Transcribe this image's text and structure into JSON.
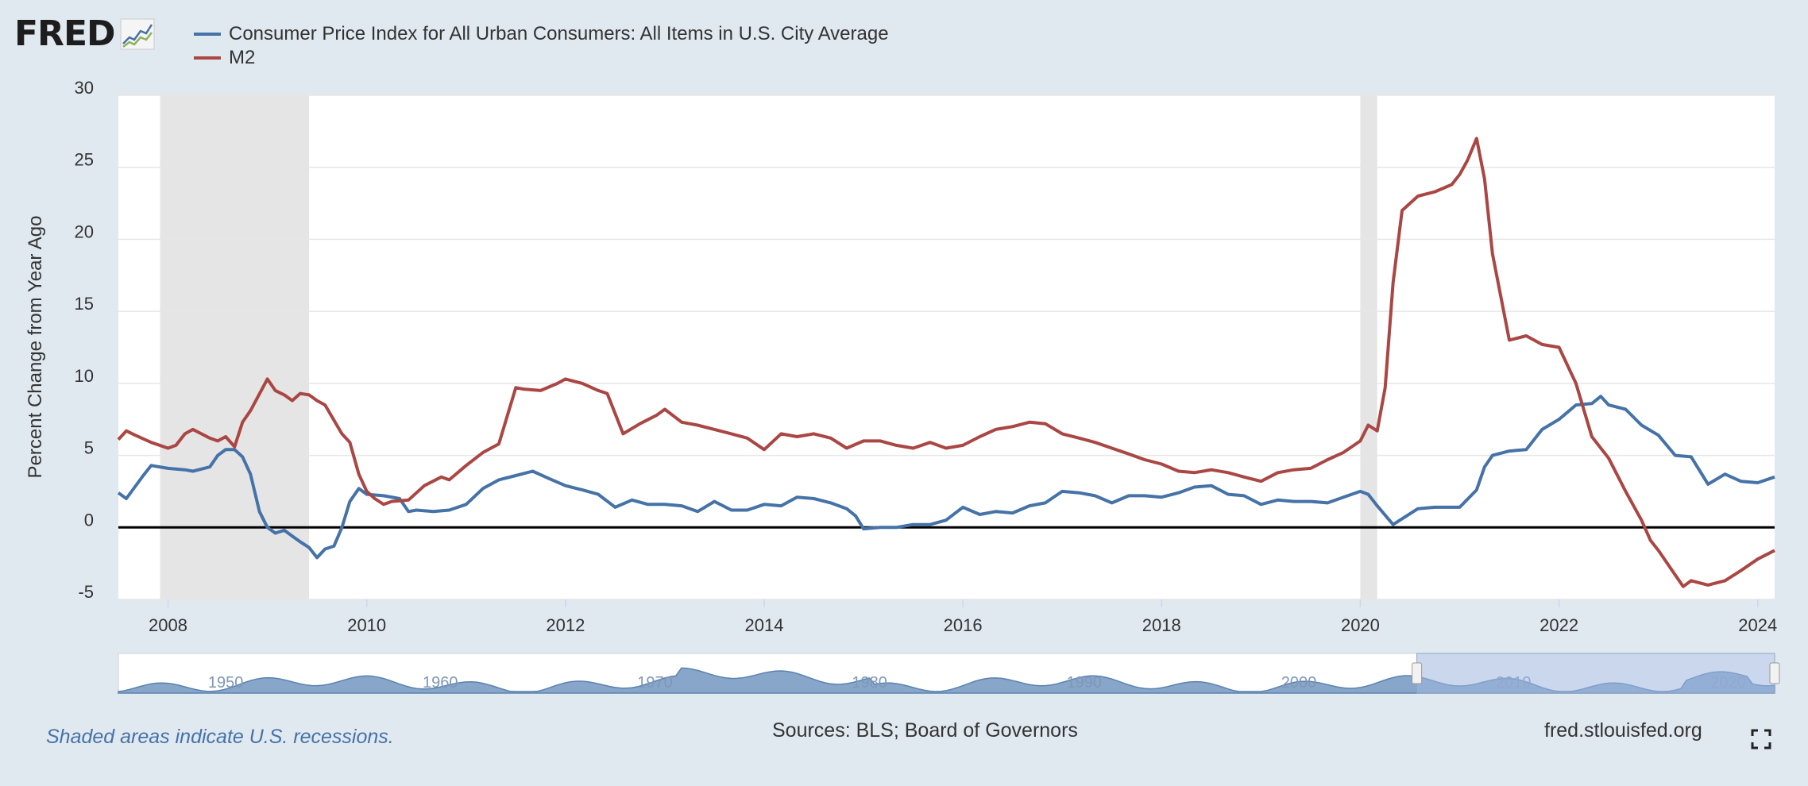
{
  "header": {
    "logo_text": "FRED",
    "logo_icon": "chart-line-icon"
  },
  "legend": {
    "items": [
      {
        "label": "Consumer Price Index for All Urban Consumers: All Items in U.S. City Average",
        "color": "#4572a7"
      },
      {
        "label": "M2",
        "color": "#aa4643"
      }
    ]
  },
  "footer": {
    "recession_note": "Shaded areas indicate U.S. recessions.",
    "sources": "Sources: BLS; Board of Governors",
    "site": "fred.stlouisfed.org",
    "fullscreen_icon": "fullscreen-icon"
  },
  "navigator": {
    "labels": [
      "1950",
      "1960",
      "1970",
      "1980",
      "1990",
      "2000",
      "2010",
      "2020"
    ],
    "selection_start": 2007.5,
    "selection_end": 2024.17
  },
  "chart_data": {
    "type": "line",
    "title": "",
    "xlabel": "",
    "ylabel": "Percent Change from Year Ago",
    "xlim": [
      2007.5,
      2024.17
    ],
    "ylim": [
      -5,
      30
    ],
    "yticks": [
      -5,
      0,
      5,
      10,
      15,
      20,
      25,
      30
    ],
    "xticks": [
      2008,
      2010,
      2012,
      2014,
      2016,
      2018,
      2020,
      2022,
      2024
    ],
    "grid": true,
    "legend_position": "top-left",
    "zero_line": true,
    "recessions": [
      [
        2007.92,
        2009.42
      ],
      [
        2020.0,
        2020.17
      ]
    ],
    "series": [
      {
        "name": "Consumer Price Index for All Urban Consumers: All Items in U.S. City Average",
        "color": "#4572a7",
        "x": [
          2007.5,
          2007.58,
          2007.75,
          2007.83,
          2008.0,
          2008.17,
          2008.25,
          2008.42,
          2008.5,
          2008.58,
          2008.67,
          2008.75,
          2008.83,
          2008.92,
          2009.0,
          2009.08,
          2009.17,
          2009.25,
          2009.33,
          2009.42,
          2009.5,
          2009.58,
          2009.67,
          2009.75,
          2009.83,
          2009.92,
          2010.0,
          2010.17,
          2010.33,
          2010.42,
          2010.5,
          2010.67,
          2010.83,
          2011.0,
          2011.17,
          2011.33,
          2011.5,
          2011.67,
          2011.83,
          2012.0,
          2012.17,
          2012.33,
          2012.5,
          2012.67,
          2012.83,
          2013.0,
          2013.17,
          2013.33,
          2013.5,
          2013.67,
          2013.83,
          2014.0,
          2014.17,
          2014.33,
          2014.5,
          2014.67,
          2014.83,
          2014.92,
          2015.0,
          2015.17,
          2015.33,
          2015.5,
          2015.67,
          2015.83,
          2016.0,
          2016.17,
          2016.33,
          2016.5,
          2016.67,
          2016.83,
          2017.0,
          2017.17,
          2017.33,
          2017.5,
          2017.67,
          2017.83,
          2018.0,
          2018.17,
          2018.33,
          2018.5,
          2018.67,
          2018.83,
          2019.0,
          2019.17,
          2019.33,
          2019.5,
          2019.67,
          2019.83,
          2020.0,
          2020.08,
          2020.17,
          2020.33,
          2020.42,
          2020.58,
          2020.75,
          2020.92,
          2021.0,
          2021.17,
          2021.25,
          2021.33,
          2021.5,
          2021.67,
          2021.83,
          2022.0,
          2022.17,
          2022.33,
          2022.42,
          2022.5,
          2022.67,
          2022.83,
          2023.0,
          2023.17,
          2023.33,
          2023.5,
          2023.67,
          2023.83,
          2024.0,
          2024.17
        ],
        "y": [
          2.4,
          2.0,
          3.6,
          4.3,
          4.1,
          4.0,
          3.9,
          4.2,
          5.0,
          5.4,
          5.4,
          4.9,
          3.7,
          1.1,
          0.0,
          -0.4,
          -0.2,
          -0.6,
          -1.0,
          -1.4,
          -2.1,
          -1.5,
          -1.3,
          0.0,
          1.8,
          2.7,
          2.3,
          2.2,
          2.0,
          1.1,
          1.2,
          1.1,
          1.2,
          1.6,
          2.7,
          3.3,
          3.6,
          3.9,
          3.4,
          2.9,
          2.6,
          2.3,
          1.4,
          1.9,
          1.6,
          1.6,
          1.5,
          1.1,
          1.8,
          1.2,
          1.2,
          1.6,
          1.5,
          2.1,
          2.0,
          1.7,
          1.3,
          0.8,
          -0.1,
          0.0,
          0.0,
          0.2,
          0.2,
          0.5,
          1.4,
          0.9,
          1.1,
          1.0,
          1.5,
          1.7,
          2.5,
          2.4,
          2.2,
          1.7,
          2.2,
          2.2,
          2.1,
          2.4,
          2.8,
          2.9,
          2.3,
          2.2,
          1.6,
          1.9,
          1.8,
          1.8,
          1.7,
          2.1,
          2.5,
          2.3,
          1.5,
          0.2,
          0.6,
          1.3,
          1.4,
          1.4,
          1.4,
          2.6,
          4.2,
          5.0,
          5.3,
          5.4,
          6.8,
          7.5,
          8.5,
          8.6,
          9.1,
          8.5,
          8.2,
          7.1,
          6.4,
          5.0,
          4.9,
          3.0,
          3.7,
          3.2,
          3.1,
          3.5
        ]
      },
      {
        "name": "M2",
        "color": "#aa4643",
        "x": [
          2007.5,
          2007.58,
          2007.67,
          2007.83,
          2008.0,
          2008.08,
          2008.17,
          2008.25,
          2008.42,
          2008.5,
          2008.58,
          2008.67,
          2008.75,
          2008.83,
          2009.0,
          2009.08,
          2009.17,
          2009.25,
          2009.33,
          2009.42,
          2009.5,
          2009.58,
          2009.75,
          2009.83,
          2009.92,
          2010.0,
          2010.08,
          2010.17,
          2010.25,
          2010.42,
          2010.58,
          2010.75,
          2010.83,
          2011.0,
          2011.17,
          2011.33,
          2011.5,
          2011.58,
          2011.75,
          2011.92,
          2012.0,
          2012.17,
          2012.33,
          2012.42,
          2012.58,
          2012.75,
          2012.92,
          2013.0,
          2013.17,
          2013.33,
          2013.5,
          2013.67,
          2013.83,
          2014.0,
          2014.17,
          2014.33,
          2014.5,
          2014.67,
          2014.83,
          2015.0,
          2015.17,
          2015.33,
          2015.5,
          2015.67,
          2015.83,
          2016.0,
          2016.17,
          2016.33,
          2016.5,
          2016.67,
          2016.83,
          2017.0,
          2017.17,
          2017.33,
          2017.5,
          2017.67,
          2017.83,
          2018.0,
          2018.17,
          2018.33,
          2018.5,
          2018.67,
          2018.83,
          2019.0,
          2019.17,
          2019.33,
          2019.5,
          2019.67,
          2019.83,
          2020.0,
          2020.08,
          2020.17,
          2020.25,
          2020.33,
          2020.42,
          2020.58,
          2020.75,
          2020.92,
          2021.0,
          2021.08,
          2021.17,
          2021.25,
          2021.33,
          2021.5,
          2021.67,
          2021.83,
          2022.0,
          2022.17,
          2022.33,
          2022.5,
          2022.67,
          2022.83,
          2022.92,
          2023.0,
          2023.17,
          2023.25,
          2023.33,
          2023.5,
          2023.67,
          2023.83,
          2024.0,
          2024.17
        ],
        "y": [
          6.1,
          6.7,
          6.4,
          5.9,
          5.5,
          5.7,
          6.5,
          6.8,
          6.2,
          6.0,
          6.3,
          5.6,
          7.3,
          8.1,
          10.3,
          9.5,
          9.2,
          8.8,
          9.3,
          9.2,
          8.8,
          8.5,
          6.5,
          5.9,
          3.7,
          2.5,
          2.0,
          1.6,
          1.8,
          1.9,
          2.9,
          3.5,
          3.3,
          4.3,
          5.2,
          5.8,
          9.7,
          9.6,
          9.5,
          10.0,
          10.3,
          10.0,
          9.5,
          9.3,
          6.5,
          7.2,
          7.8,
          8.2,
          7.3,
          7.1,
          6.8,
          6.5,
          6.2,
          5.4,
          6.5,
          6.3,
          6.5,
          6.2,
          5.5,
          6.0,
          6.0,
          5.7,
          5.5,
          5.9,
          5.5,
          5.7,
          6.3,
          6.8,
          7.0,
          7.3,
          7.2,
          6.5,
          6.2,
          5.9,
          5.5,
          5.1,
          4.7,
          4.4,
          3.9,
          3.8,
          4.0,
          3.8,
          3.5,
          3.2,
          3.8,
          4.0,
          4.1,
          4.7,
          5.2,
          6.0,
          7.1,
          6.7,
          9.7,
          17.0,
          22.0,
          23.0,
          23.3,
          23.8,
          24.5,
          25.5,
          27.0,
          24.2,
          19.0,
          13.0,
          13.3,
          12.7,
          12.5,
          10.0,
          6.3,
          4.8,
          2.5,
          0.5,
          -0.9,
          -1.6,
          -3.3,
          -4.1,
          -3.7,
          -4.0,
          -3.7,
          -3.0,
          -2.2,
          -1.6
        ]
      }
    ]
  }
}
